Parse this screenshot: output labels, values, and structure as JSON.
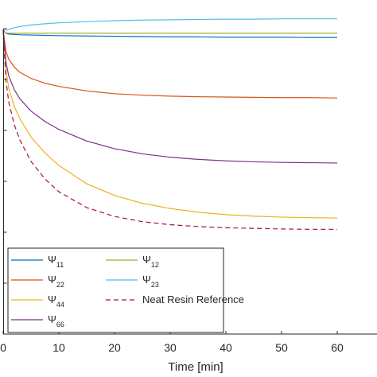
{
  "chart_data": {
    "type": "line",
    "xlabel": "Time [min]",
    "ylabel": "",
    "xlim": [
      0,
      60
    ],
    "x_ticks": [
      0,
      10,
      20,
      30,
      40,
      50,
      60
    ],
    "x_tick_labels": [
      "0",
      "10",
      "20",
      "30",
      "40",
      "50",
      "60"
    ],
    "ylim": [
      0,
      1
    ],
    "grid": false,
    "legend_position": "bottom-left",
    "legend_columns": 2,
    "x": [
      0,
      0.5,
      1,
      2,
      3,
      5,
      7.5,
      10,
      15,
      20,
      25,
      30,
      35,
      40,
      45,
      50,
      55,
      60
    ],
    "series": [
      {
        "name": "Ψ",
        "subscript": "11",
        "color": "#0072BD",
        "dashed": false,
        "values": [
          0.995,
          0.985,
          0.982,
          0.981,
          0.98,
          0.979,
          0.978,
          0.977,
          0.976,
          0.975,
          0.974,
          0.973,
          0.973,
          0.972,
          0.972,
          0.972,
          0.971,
          0.971
        ]
      },
      {
        "name": "Ψ",
        "subscript": "12",
        "color": "#A8A838",
        "dashed": false,
        "values": [
          0.995,
          0.986,
          0.985,
          0.985,
          0.985,
          0.985,
          0.985,
          0.985,
          0.985,
          0.985,
          0.985,
          0.985,
          0.985,
          0.985,
          0.985,
          0.985,
          0.985,
          0.985
        ]
      },
      {
        "name": "Ψ",
        "subscript": "22",
        "color": "#D95319",
        "dashed": false,
        "values": [
          0.995,
          0.925,
          0.9,
          0.874,
          0.857,
          0.837,
          0.821,
          0.811,
          0.796,
          0.787,
          0.782,
          0.779,
          0.777,
          0.776,
          0.775,
          0.774,
          0.774,
          0.773
        ]
      },
      {
        "name": "Ψ",
        "subscript": "23",
        "color": "#4DBEEE",
        "dashed": false,
        "values": [
          0.995,
          0.995,
          0.998,
          1.003,
          1.007,
          1.012,
          1.016,
          1.019,
          1.023,
          1.026,
          1.028,
          1.029,
          1.03,
          1.031,
          1.031,
          1.032,
          1.032,
          1.032
        ]
      },
      {
        "name": "Ψ",
        "subscript": "44",
        "color": "#EDB120",
        "dashed": false,
        "values": [
          0.995,
          0.865,
          0.805,
          0.745,
          0.705,
          0.645,
          0.593,
          0.552,
          0.492,
          0.454,
          0.428,
          0.411,
          0.399,
          0.391,
          0.386,
          0.383,
          0.381,
          0.38
        ]
      },
      {
        "name": "Ψ",
        "subscript": "66",
        "color": "#7E2F8E",
        "dashed": false,
        "values": [
          0.995,
          0.89,
          0.845,
          0.8,
          0.77,
          0.73,
          0.696,
          0.67,
          0.632,
          0.607,
          0.59,
          0.579,
          0.572,
          0.567,
          0.564,
          0.562,
          0.561,
          0.56
        ]
      },
      {
        "name": "Neat Resin Reference",
        "subscript": "",
        "color": "#A2142F",
        "dashed": true,
        "values": [
          0.995,
          0.83,
          0.76,
          0.685,
          0.635,
          0.565,
          0.508,
          0.466,
          0.414,
          0.385,
          0.368,
          0.358,
          0.352,
          0.348,
          0.346,
          0.344,
          0.343,
          0.343
        ]
      }
    ]
  }
}
